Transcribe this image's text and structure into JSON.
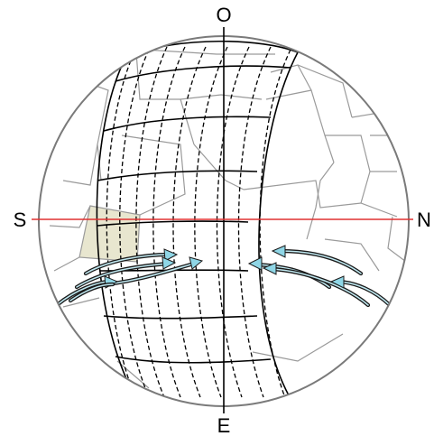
{
  "labels": {
    "top": "O",
    "bottom": "E",
    "left": "S",
    "right": "N"
  },
  "colors": {
    "equator_line": "#e03030",
    "meridian_line": "#000000",
    "globe_outline": "#7a7a7a",
    "plate_lines": "#9a9a9a",
    "highlight_cell": "#e8e6cf",
    "arrow_fill": "#8fd6e6"
  }
}
